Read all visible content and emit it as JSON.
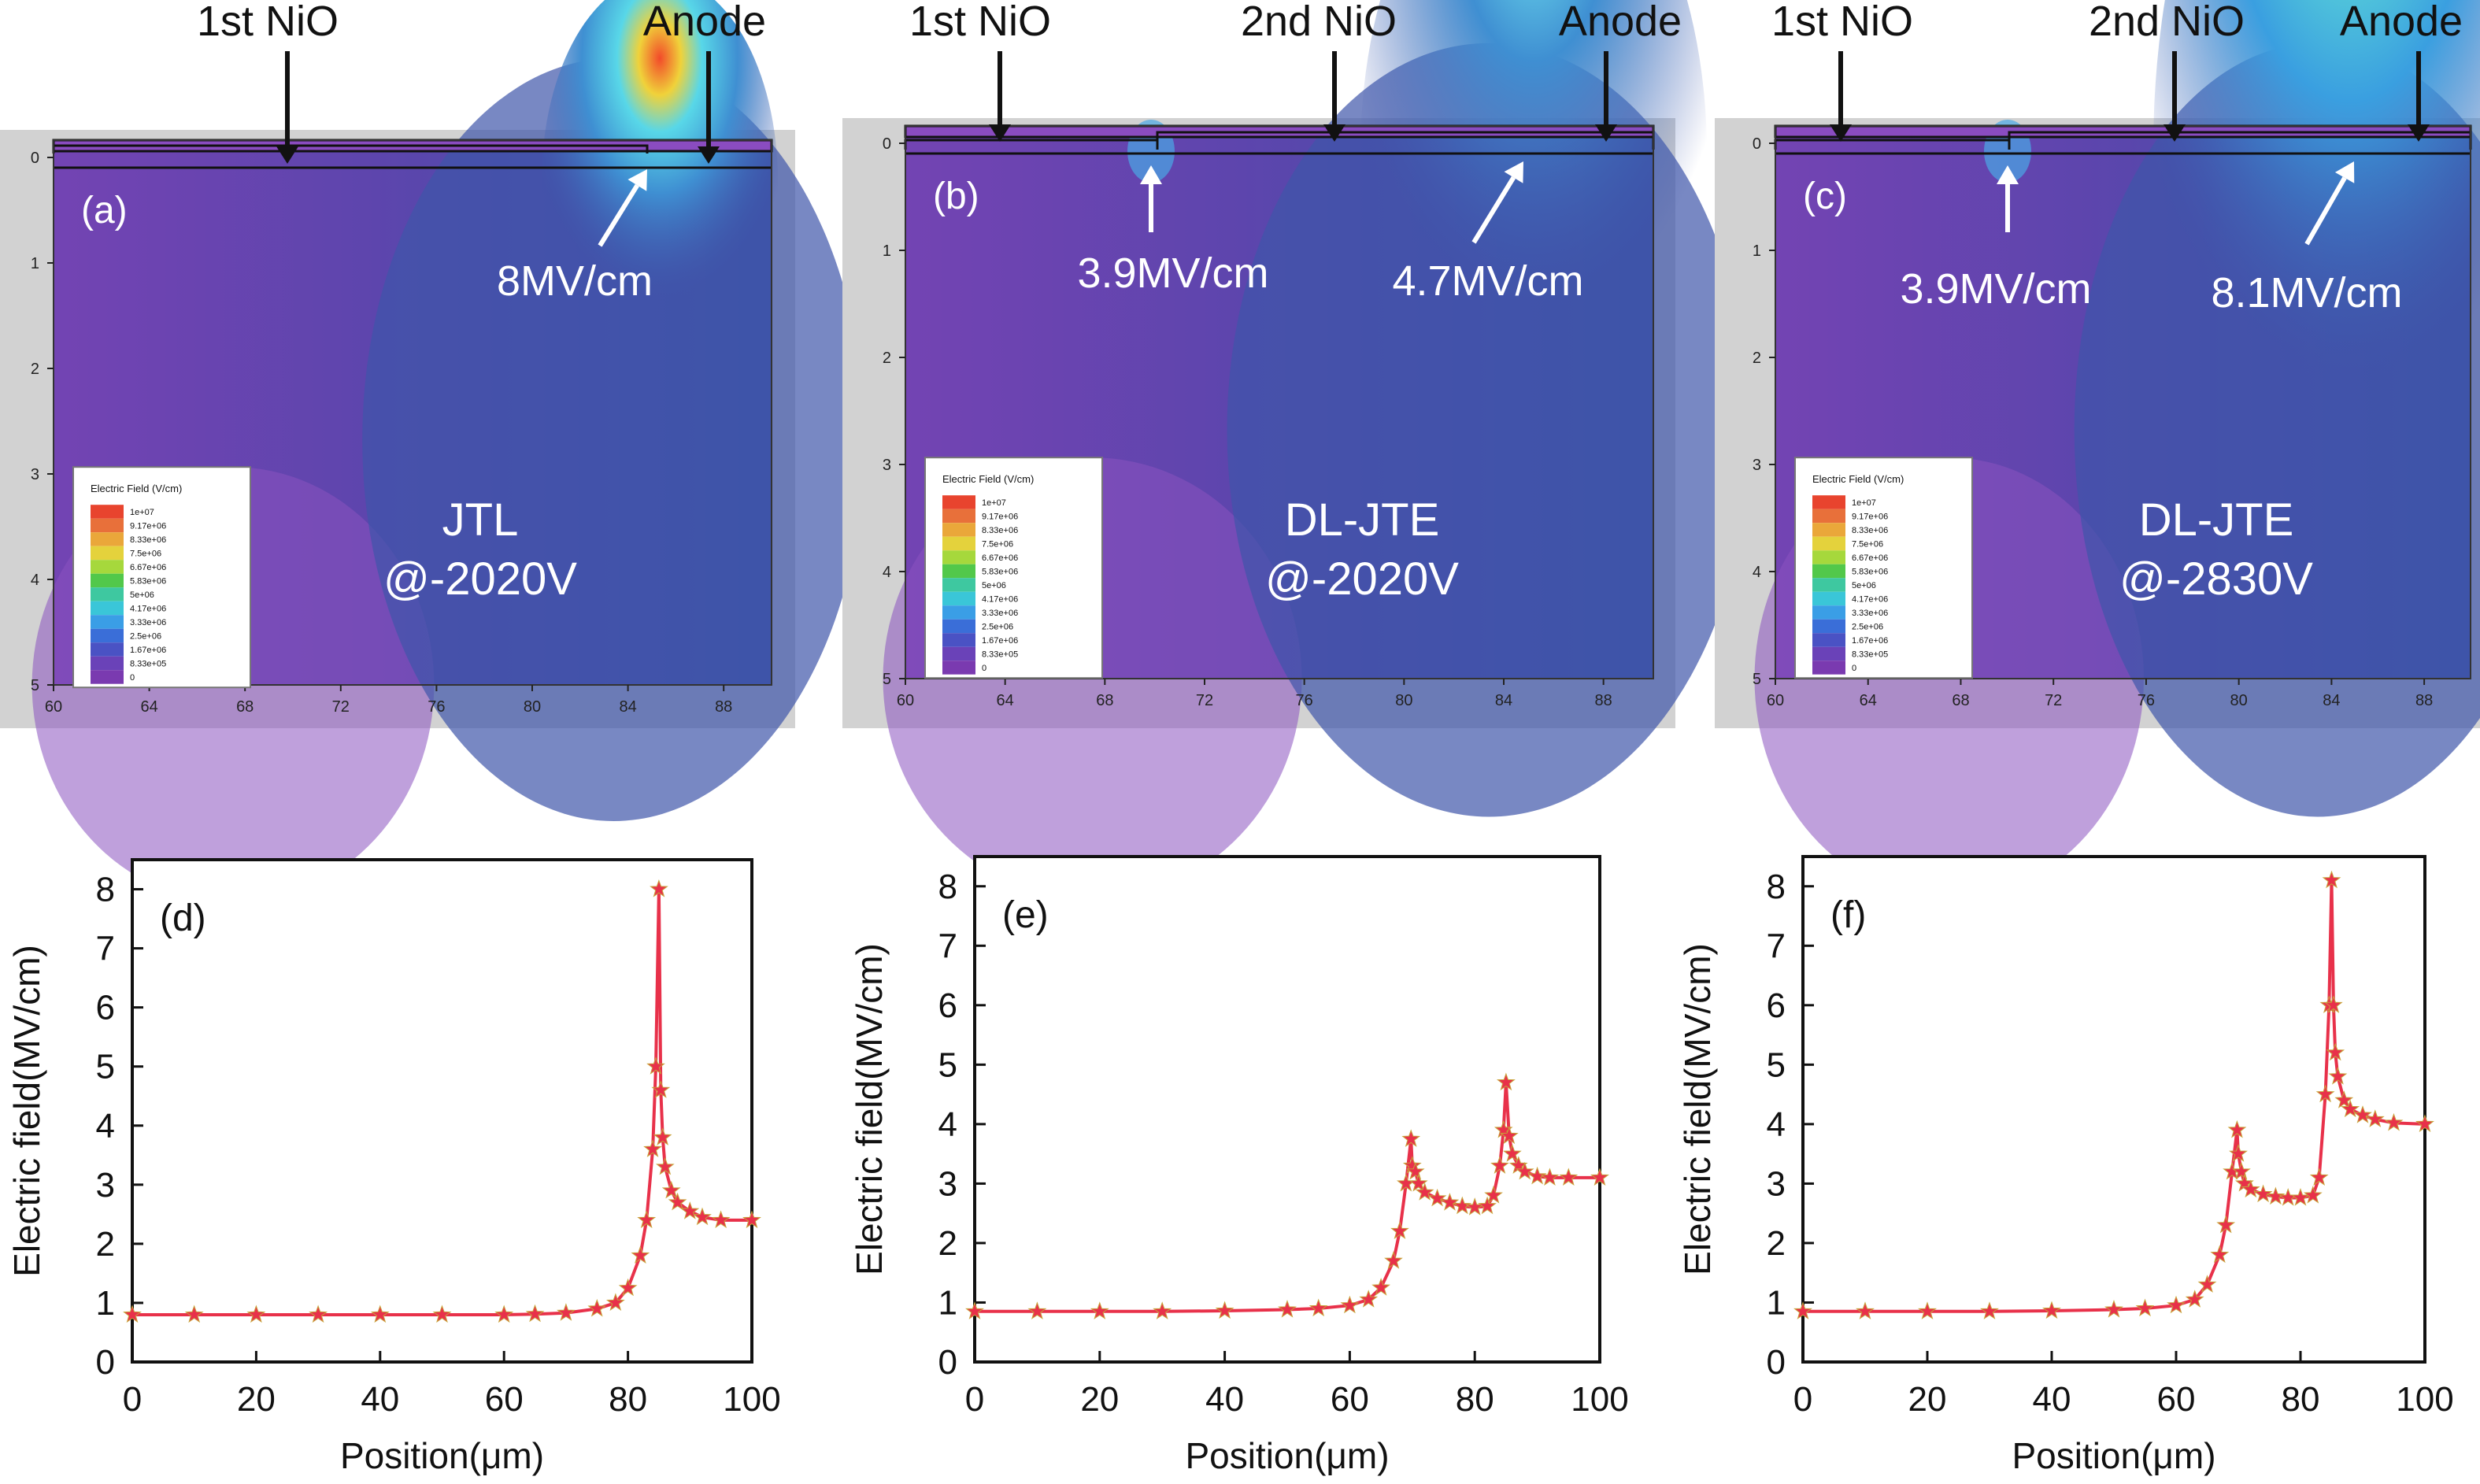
{
  "colors": {
    "background": "#6d3fb0",
    "field_low": "#6e44b2",
    "field_mid": "#3f52a8",
    "field_high": "#3f8fd2",
    "hotspot": "#e83a2a",
    "curve": "#e8314a",
    "marker": "#e8314a"
  },
  "chart_data": [
    {
      "type": "heatmap",
      "panel": "(a)",
      "title": "JTL",
      "subtitle": "@-2020V",
      "annotations_top": [
        "1st NiO",
        "Anode"
      ],
      "peak_labels": [
        "8MV/cm"
      ],
      "x_ticks": [
        "60",
        "64",
        "68",
        "72",
        "76",
        "80",
        "84",
        "88"
      ],
      "y_ticks": [
        "0",
        "1",
        "2",
        "3",
        "4",
        "5"
      ],
      "xlim": [
        60,
        90
      ],
      "ylim": [
        0,
        5
      ],
      "legend_title": "Electric Field (V/cm)",
      "legend_values": [
        "1e+07",
        "9.17e+06",
        "8.33e+06",
        "7.5e+06",
        "6.67e+06",
        "5.83e+06",
        "5e+06",
        "4.17e+06",
        "3.33e+06",
        "2.5e+06",
        "1.67e+06",
        "8.33e+05",
        "0"
      ]
    },
    {
      "type": "heatmap",
      "panel": "(b)",
      "title": "DL-JTE",
      "subtitle": "@-2020V",
      "annotations_top": [
        "1st NiO",
        "2nd NiO",
        "Anode"
      ],
      "peak_labels": [
        "3.9MV/cm",
        "4.7MV/cm"
      ],
      "x_ticks": [
        "60",
        "64",
        "68",
        "72",
        "76",
        "80",
        "84",
        "88"
      ],
      "y_ticks": [
        "0",
        "1",
        "2",
        "3",
        "4",
        "5"
      ],
      "xlim": [
        60,
        90
      ],
      "ylim": [
        0,
        5
      ],
      "legend_title": "Electric Field (V/cm)",
      "legend_values": [
        "1e+07",
        "9.17e+06",
        "8.33e+06",
        "7.5e+06",
        "6.67e+06",
        "5.83e+06",
        "5e+06",
        "4.17e+06",
        "3.33e+06",
        "2.5e+06",
        "1.67e+06",
        "8.33e+05",
        "0"
      ]
    },
    {
      "type": "heatmap",
      "panel": "(c)",
      "title": "DL-JTE",
      "subtitle": "@-2830V",
      "annotations_top": [
        "1st NiO",
        "2nd NiO",
        "Anode"
      ],
      "peak_labels": [
        "3.9MV/cm",
        "8.1MV/cm"
      ],
      "x_ticks": [
        "60",
        "64",
        "68",
        "72",
        "76",
        "80",
        "84",
        "88"
      ],
      "y_ticks": [
        "0",
        "1",
        "2",
        "3",
        "4",
        "5"
      ],
      "xlim": [
        60,
        90
      ],
      "ylim": [
        0,
        5
      ],
      "legend_title": "Electric Field (V/cm)",
      "legend_values": [
        "1e+07",
        "9.17e+06",
        "8.33e+06",
        "7.5e+06",
        "6.67e+06",
        "5.83e+06",
        "5e+06",
        "4.17e+06",
        "3.33e+06",
        "2.5e+06",
        "1.67e+06",
        "8.33e+05",
        "0"
      ]
    },
    {
      "type": "line",
      "panel": "(d)",
      "xlabel": "Position(μm)",
      "ylabel": "Electric field(MV/cm)",
      "xlim": [
        0,
        100
      ],
      "ylim": [
        0,
        8.5
      ],
      "x_ticks": [
        "0",
        "20",
        "40",
        "60",
        "80",
        "100"
      ],
      "y_ticks": [
        "0",
        "1",
        "2",
        "3",
        "4",
        "5",
        "6",
        "7",
        "8"
      ],
      "series": [
        {
          "x": [
            0,
            10,
            20,
            30,
            40,
            50,
            60,
            65,
            70,
            75,
            78,
            80,
            82,
            83,
            84,
            84.5,
            85,
            85.3,
            85.6,
            86,
            87,
            88,
            90,
            92,
            95,
            100
          ],
          "y": [
            0.8,
            0.8,
            0.8,
            0.8,
            0.8,
            0.8,
            0.8,
            0.81,
            0.83,
            0.9,
            1.0,
            1.25,
            1.8,
            2.4,
            3.6,
            5.0,
            8.0,
            4.6,
            3.8,
            3.3,
            2.9,
            2.7,
            2.55,
            2.45,
            2.4,
            2.4
          ]
        }
      ]
    },
    {
      "type": "line",
      "panel": "(e)",
      "xlabel": "Position(μm)",
      "ylabel": "Electric field(MV/cm)",
      "xlim": [
        0,
        100
      ],
      "ylim": [
        0,
        8.5
      ],
      "x_ticks": [
        "0",
        "20",
        "40",
        "60",
        "80",
        "100"
      ],
      "y_ticks": [
        "0",
        "1",
        "2",
        "3",
        "4",
        "5",
        "6",
        "7",
        "8"
      ],
      "series": [
        {
          "x": [
            0,
            10,
            20,
            30,
            40,
            50,
            55,
            60,
            63,
            65,
            67,
            68,
            69,
            69.8,
            70,
            70.5,
            71,
            72,
            74,
            76,
            78,
            80,
            82,
            83,
            84,
            84.6,
            85,
            85.5,
            86,
            87,
            88,
            90,
            92,
            95,
            100
          ],
          "y": [
            0.85,
            0.85,
            0.85,
            0.85,
            0.86,
            0.88,
            0.9,
            0.95,
            1.05,
            1.25,
            1.7,
            2.2,
            3.0,
            3.75,
            3.3,
            3.2,
            3.0,
            2.85,
            2.75,
            2.68,
            2.62,
            2.6,
            2.62,
            2.8,
            3.3,
            3.9,
            4.7,
            3.8,
            3.5,
            3.3,
            3.2,
            3.12,
            3.1,
            3.1,
            3.1
          ]
        }
      ]
    },
    {
      "type": "line",
      "panel": "(f)",
      "xlabel": "Position(μm)",
      "ylabel": "Electric field(MV/cm)",
      "xlim": [
        0,
        100
      ],
      "ylim": [
        0,
        8.5
      ],
      "x_ticks": [
        "0",
        "20",
        "40",
        "60",
        "80",
        "100"
      ],
      "y_ticks": [
        "0",
        "1",
        "2",
        "3",
        "4",
        "5",
        "6",
        "7",
        "8"
      ],
      "series": [
        {
          "x": [
            0,
            10,
            20,
            30,
            40,
            50,
            55,
            60,
            63,
            65,
            67,
            68,
            69,
            69.8,
            70,
            70.5,
            71,
            72,
            74,
            76,
            78,
            80,
            82,
            83,
            84,
            84.6,
            85,
            85.3,
            85.6,
            86,
            87,
            88,
            90,
            92,
            95,
            100
          ],
          "y": [
            0.85,
            0.85,
            0.85,
            0.85,
            0.86,
            0.88,
            0.9,
            0.95,
            1.05,
            1.3,
            1.8,
            2.3,
            3.2,
            3.9,
            3.5,
            3.2,
            3.0,
            2.9,
            2.82,
            2.78,
            2.76,
            2.76,
            2.8,
            3.1,
            4.5,
            6.0,
            8.1,
            6.0,
            5.2,
            4.8,
            4.4,
            4.25,
            4.15,
            4.08,
            4.02,
            4.0
          ]
        }
      ]
    }
  ]
}
